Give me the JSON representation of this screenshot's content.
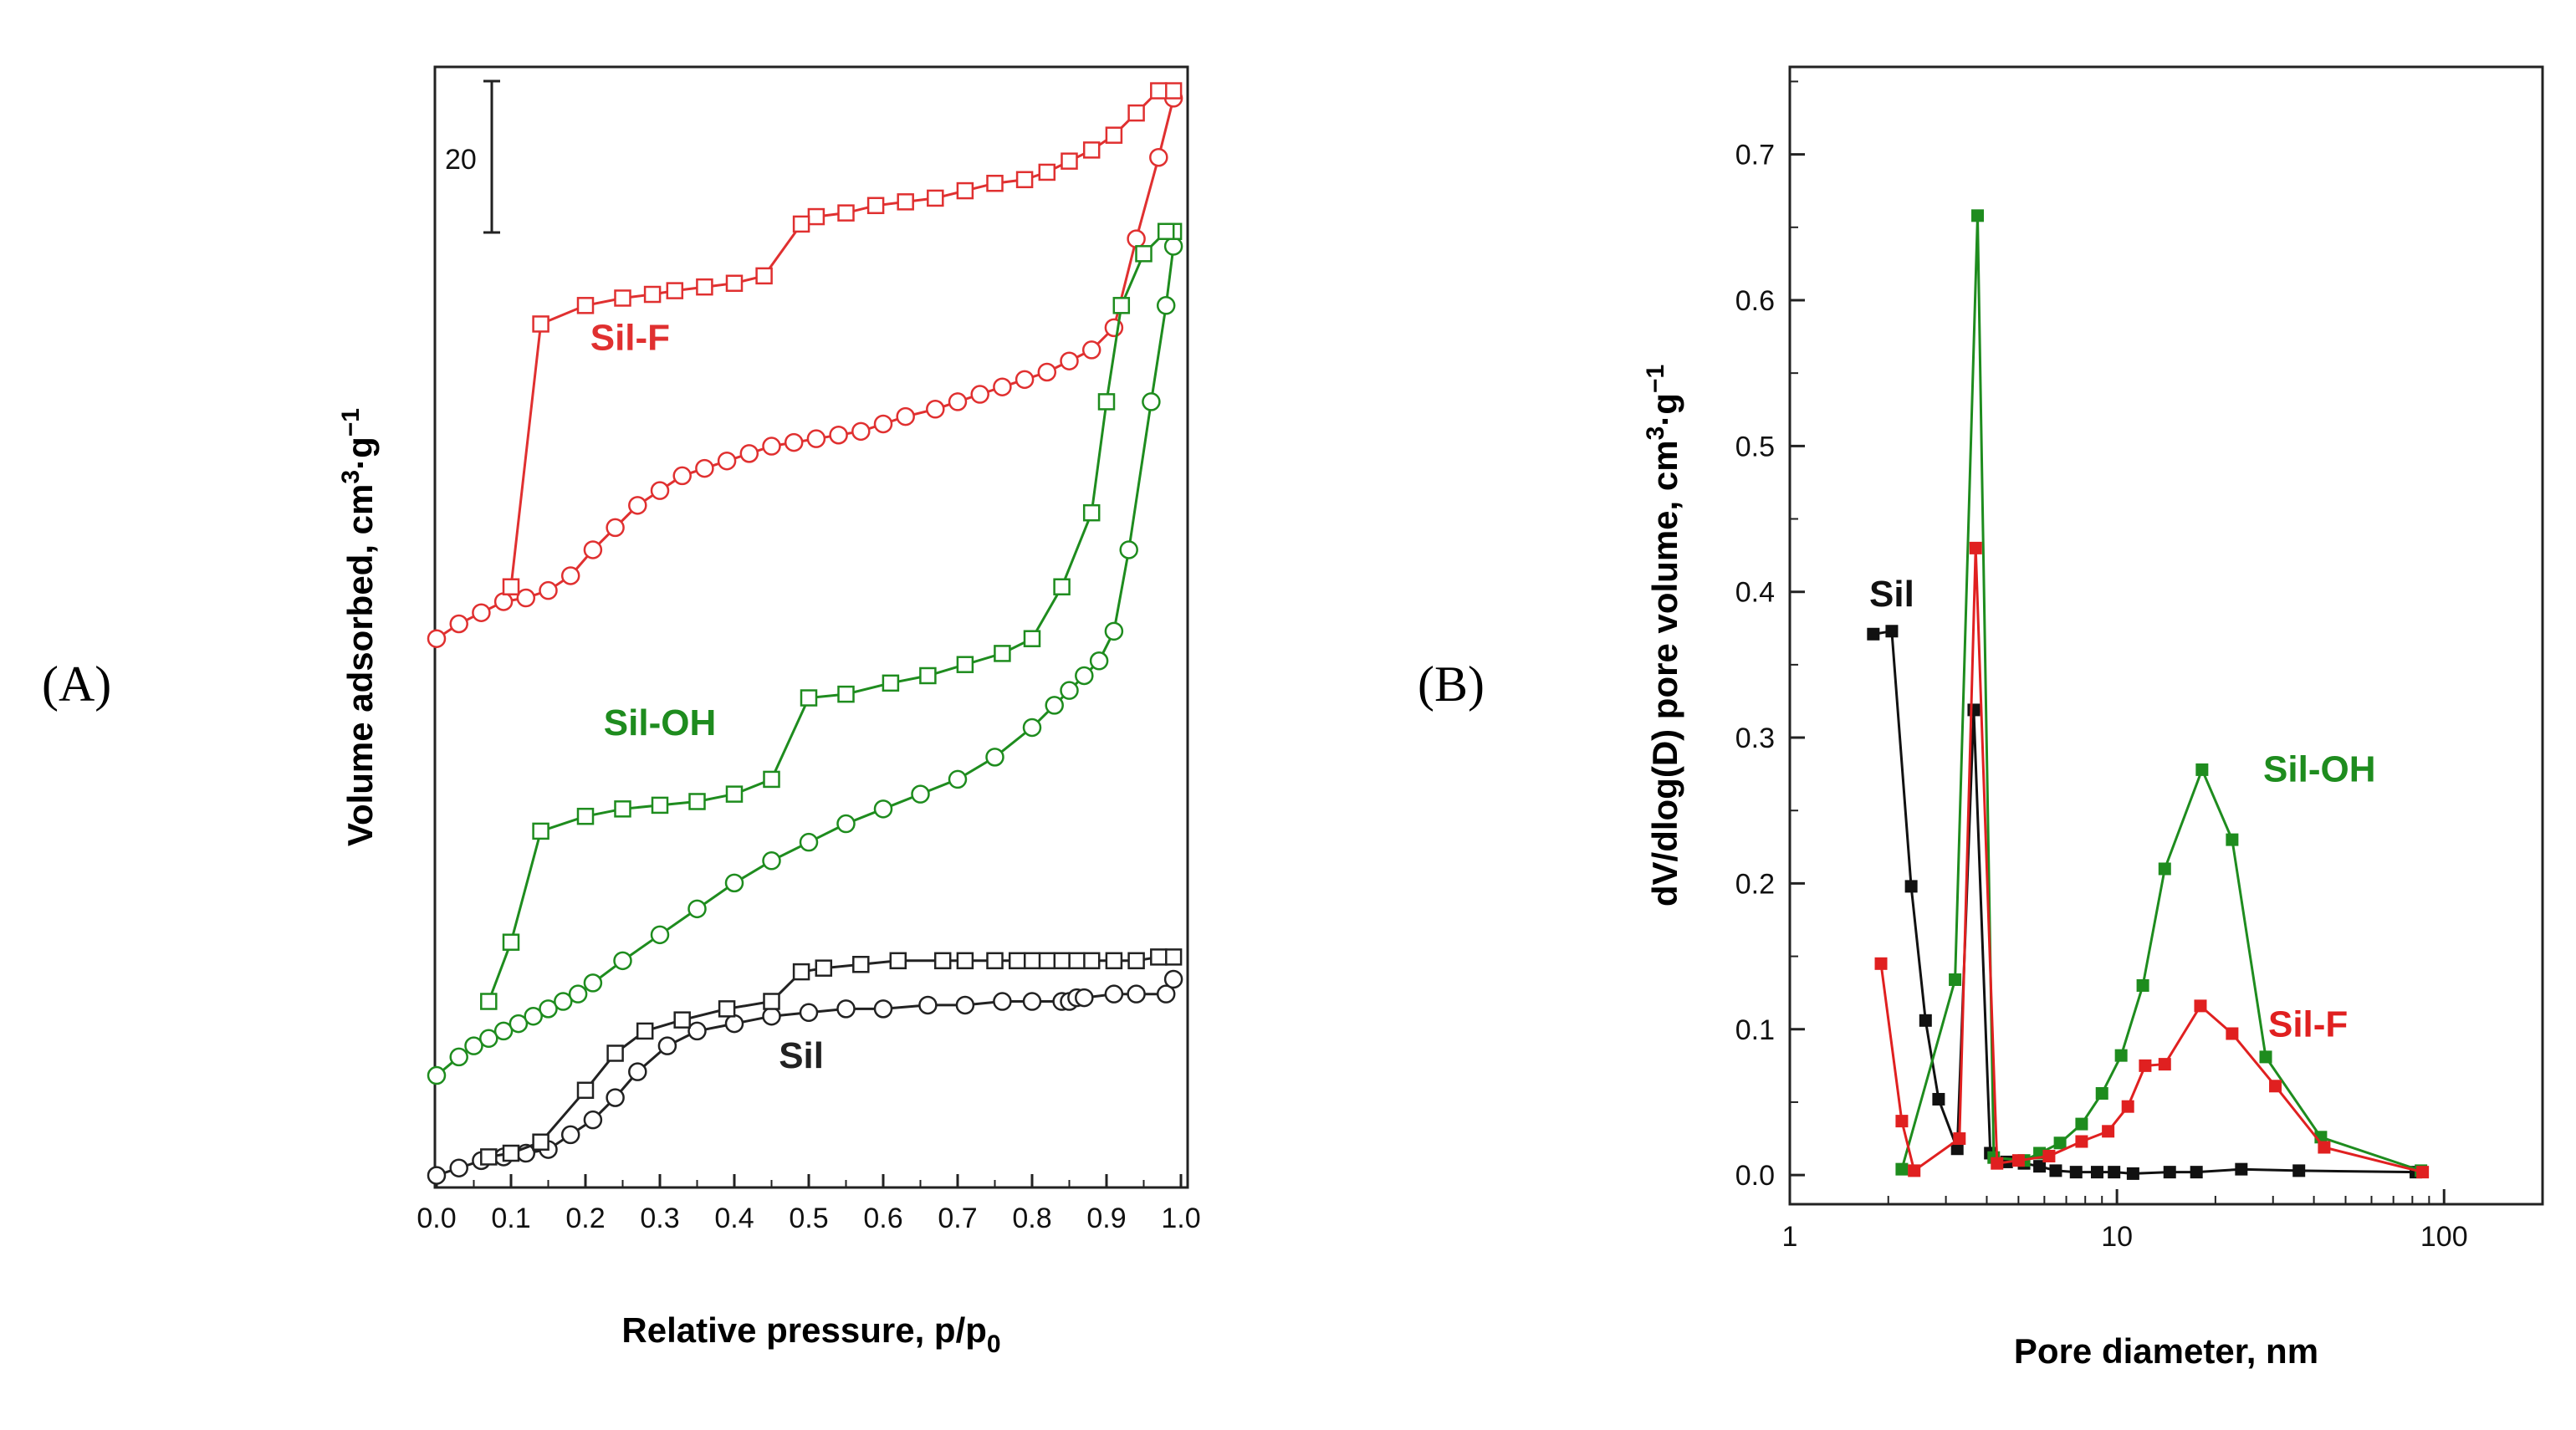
{
  "chart_data": [
    {
      "panel": "(A)",
      "type": "line",
      "xlabel": "Relative pressure, p/p",
      "xlabel_sub": "0",
      "ylabel": "Volume adsorbed, cm",
      "ylabel_sup1": "3",
      "ylabel_mid": "·g",
      "ylabel_sup2": "−1",
      "xlim": [
        0.0,
        1.0
      ],
      "ylim": [
        0,
        150
      ],
      "xticks": [
        "0.0",
        "0.1",
        "0.2",
        "0.3",
        "0.4",
        "0.5",
        "0.6",
        "0.7",
        "0.8",
        "0.9",
        "1.0"
      ],
      "yticks_shown": false,
      "scale_bar": {
        "label": "20",
        "value": 20
      },
      "series": [
        {
          "name": "Sil-F",
          "color": "#e03030",
          "label": "Sil-F",
          "label_at": [
            0.26,
            112
          ],
          "adsorption": {
            "marker": "circle",
            "x": [
              0.0,
              0.03,
              0.06,
              0.09,
              0.12,
              0.15,
              0.18,
              0.21,
              0.24,
              0.27,
              0.3,
              0.33,
              0.36,
              0.39,
              0.42,
              0.45,
              0.48,
              0.51,
              0.54,
              0.57,
              0.6,
              0.63,
              0.67,
              0.7,
              0.73,
              0.76,
              0.79,
              0.82,
              0.85,
              0.88,
              0.91,
              0.94,
              0.97,
              0.99
            ],
            "y": [
              73,
              75,
              76.5,
              78,
              78.5,
              79.5,
              81.5,
              85,
              88,
              91,
              93,
              95,
              96,
              97,
              98,
              99,
              99.5,
              100,
              100.5,
              101,
              102,
              103,
              104,
              105,
              106,
              107,
              108,
              109,
              110.5,
              112,
              115,
              127,
              138,
              146
            ]
          },
          "desorption": {
            "marker": "square",
            "x": [
              0.99,
              0.97,
              0.94,
              0.91,
              0.88,
              0.85,
              0.82,
              0.79,
              0.75,
              0.71,
              0.67,
              0.63,
              0.59,
              0.55,
              0.51,
              0.49,
              0.44,
              0.4,
              0.36,
              0.32,
              0.29,
              0.25,
              0.2,
              0.14,
              0.1
            ],
            "y": [
              147,
              147,
              144,
              141,
              139,
              137.5,
              136,
              135,
              134.5,
              133.5,
              132.5,
              132,
              131.5,
              130.5,
              130,
              129,
              122,
              121,
              120.5,
              120,
              119.5,
              119,
              118,
              115.5,
              80
            ]
          }
        },
        {
          "name": "Sil-OH",
          "color": "#1e8c1e",
          "label": "Sil-OH",
          "label_at": [
            0.3,
            60
          ],
          "adsorption": {
            "marker": "circle",
            "x": [
              0.0,
              0.03,
              0.05,
              0.07,
              0.09,
              0.11,
              0.13,
              0.15,
              0.17,
              0.19,
              0.21,
              0.25,
              0.3,
              0.35,
              0.4,
              0.45,
              0.5,
              0.55,
              0.6,
              0.65,
              0.7,
              0.75,
              0.8,
              0.83,
              0.85,
              0.87,
              0.89,
              0.91,
              0.93,
              0.96,
              0.98,
              0.99
            ],
            "y": [
              14,
              16.5,
              18,
              19,
              20,
              21,
              22,
              23,
              24,
              25,
              26.5,
              29.5,
              33,
              36.5,
              40,
              43,
              45.5,
              48,
              50,
              52,
              54,
              57,
              61,
              64,
              66,
              68,
              70,
              74,
              85,
              105,
              118,
              126
            ]
          },
          "desorption": {
            "marker": "square",
            "x": [
              0.99,
              0.98,
              0.95,
              0.92,
              0.9,
              0.88,
              0.84,
              0.8,
              0.76,
              0.71,
              0.66,
              0.61,
              0.55,
              0.5,
              0.45,
              0.4,
              0.35,
              0.3,
              0.25,
              0.2,
              0.14,
              0.1,
              0.07
            ],
            "y": [
              128,
              128,
              125,
              118,
              105,
              90,
              80,
              73,
              71,
              69.5,
              68,
              67,
              65.5,
              65,
              54,
              52,
              51,
              50.5,
              50,
              49,
              47,
              32,
              24
            ]
          }
        },
        {
          "name": "Sil",
          "color": "#222222",
          "label": "Sil",
          "label_at": [
            0.49,
            15
          ],
          "adsorption": {
            "marker": "circle",
            "x": [
              0.0,
              0.03,
              0.06,
              0.09,
              0.12,
              0.15,
              0.18,
              0.21,
              0.24,
              0.27,
              0.31,
              0.35,
              0.4,
              0.45,
              0.5,
              0.55,
              0.6,
              0.66,
              0.71,
              0.76,
              0.8,
              0.84,
              0.85,
              0.86,
              0.87,
              0.91,
              0.94,
              0.98,
              0.99
            ],
            "y": [
              0.5,
              1.5,
              2.5,
              3,
              3.5,
              4,
              6,
              8,
              11,
              14.5,
              18,
              20,
              21,
              22,
              22.5,
              23,
              23,
              23.5,
              23.5,
              24,
              24,
              24,
              24,
              24.5,
              24.5,
              25,
              25,
              25,
              27
            ]
          },
          "desorption": {
            "marker": "square",
            "x": [
              0.99,
              0.97,
              0.94,
              0.91,
              0.88,
              0.86,
              0.84,
              0.82,
              0.8,
              0.78,
              0.75,
              0.71,
              0.68,
              0.62,
              0.57,
              0.52,
              0.49,
              0.45,
              0.39,
              0.33,
              0.28,
              0.24,
              0.2,
              0.14,
              0.1,
              0.07
            ],
            "y": [
              30,
              30,
              29.5,
              29.5,
              29.5,
              29.5,
              29.5,
              29.5,
              29.5,
              29.5,
              29.5,
              29.5,
              29.5,
              29.5,
              29,
              28.5,
              28,
              24,
              23,
              21.5,
              20,
              17,
              12,
              5,
              3.5,
              3
            ]
          }
        }
      ]
    },
    {
      "panel": "(B)",
      "type": "line",
      "xscale": "log",
      "xlabel": "Pore diameter, nm",
      "ylabel": "dV/dlog(D) pore volume, cm",
      "ylabel_sup1": "3",
      "ylabel_mid": "·g",
      "ylabel_sup2": "−1",
      "xlim": [
        1,
        200
      ],
      "ylim": [
        -0.02,
        0.76
      ],
      "xticks": [
        "1",
        "10",
        "100"
      ],
      "xtick_values": [
        1,
        10,
        100
      ],
      "yticks": [
        "0.0",
        "0.1",
        "0.2",
        "0.3",
        "0.4",
        "0.5",
        "0.6",
        "0.7"
      ],
      "ytick_values": [
        0.0,
        0.1,
        0.2,
        0.3,
        0.4,
        0.5,
        0.6,
        0.7
      ],
      "series": [
        {
          "name": "Sil",
          "color": "#111111",
          "label": "Sil",
          "label_at": [
            1.75,
            0.39
          ],
          "x": [
            1.8,
            2.05,
            2.35,
            2.6,
            2.85,
            3.25,
            3.65,
            4.1,
            4.6,
            5.2,
            5.8,
            6.5,
            7.5,
            8.7,
            9.8,
            11.2,
            14.5,
            17.5,
            24,
            36,
            82
          ],
          "y": [
            0.371,
            0.373,
            0.198,
            0.106,
            0.052,
            0.018,
            0.319,
            0.015,
            0.009,
            0.008,
            0.006,
            0.003,
            0.002,
            0.002,
            0.002,
            0.001,
            0.002,
            0.002,
            0.004,
            0.003,
            0.002
          ]
        },
        {
          "name": "Sil-OH",
          "color": "#1e8c1e",
          "label": "Sil-OH",
          "label_at": [
            28,
            0.27
          ],
          "x": [
            2.2,
            3.2,
            3.75,
            4.2,
            5.2,
            5.8,
            6.7,
            7.8,
            9.0,
            10.3,
            12.0,
            14.0,
            18.2,
            22.5,
            28.5,
            42,
            85
          ],
          "y": [
            0.004,
            0.134,
            0.658,
            0.012,
            0.01,
            0.015,
            0.022,
            0.035,
            0.056,
            0.082,
            0.13,
            0.21,
            0.278,
            0.23,
            0.081,
            0.026,
            0.003
          ]
        },
        {
          "name": "Sil-F",
          "color": "#e02020",
          "label": "Sil-F",
          "label_at": [
            29,
            0.095
          ],
          "x": [
            1.9,
            2.2,
            2.4,
            3.3,
            3.7,
            4.3,
            5.0,
            6.2,
            7.8,
            9.4,
            10.8,
            12.2,
            14.0,
            18.0,
            22.5,
            30.5,
            43,
            86
          ],
          "y": [
            0.145,
            0.037,
            0.003,
            0.025,
            0.43,
            0.008,
            0.01,
            0.013,
            0.023,
            0.03,
            0.047,
            0.075,
            0.076,
            0.116,
            0.097,
            0.061,
            0.019,
            0.002
          ]
        }
      ]
    }
  ]
}
